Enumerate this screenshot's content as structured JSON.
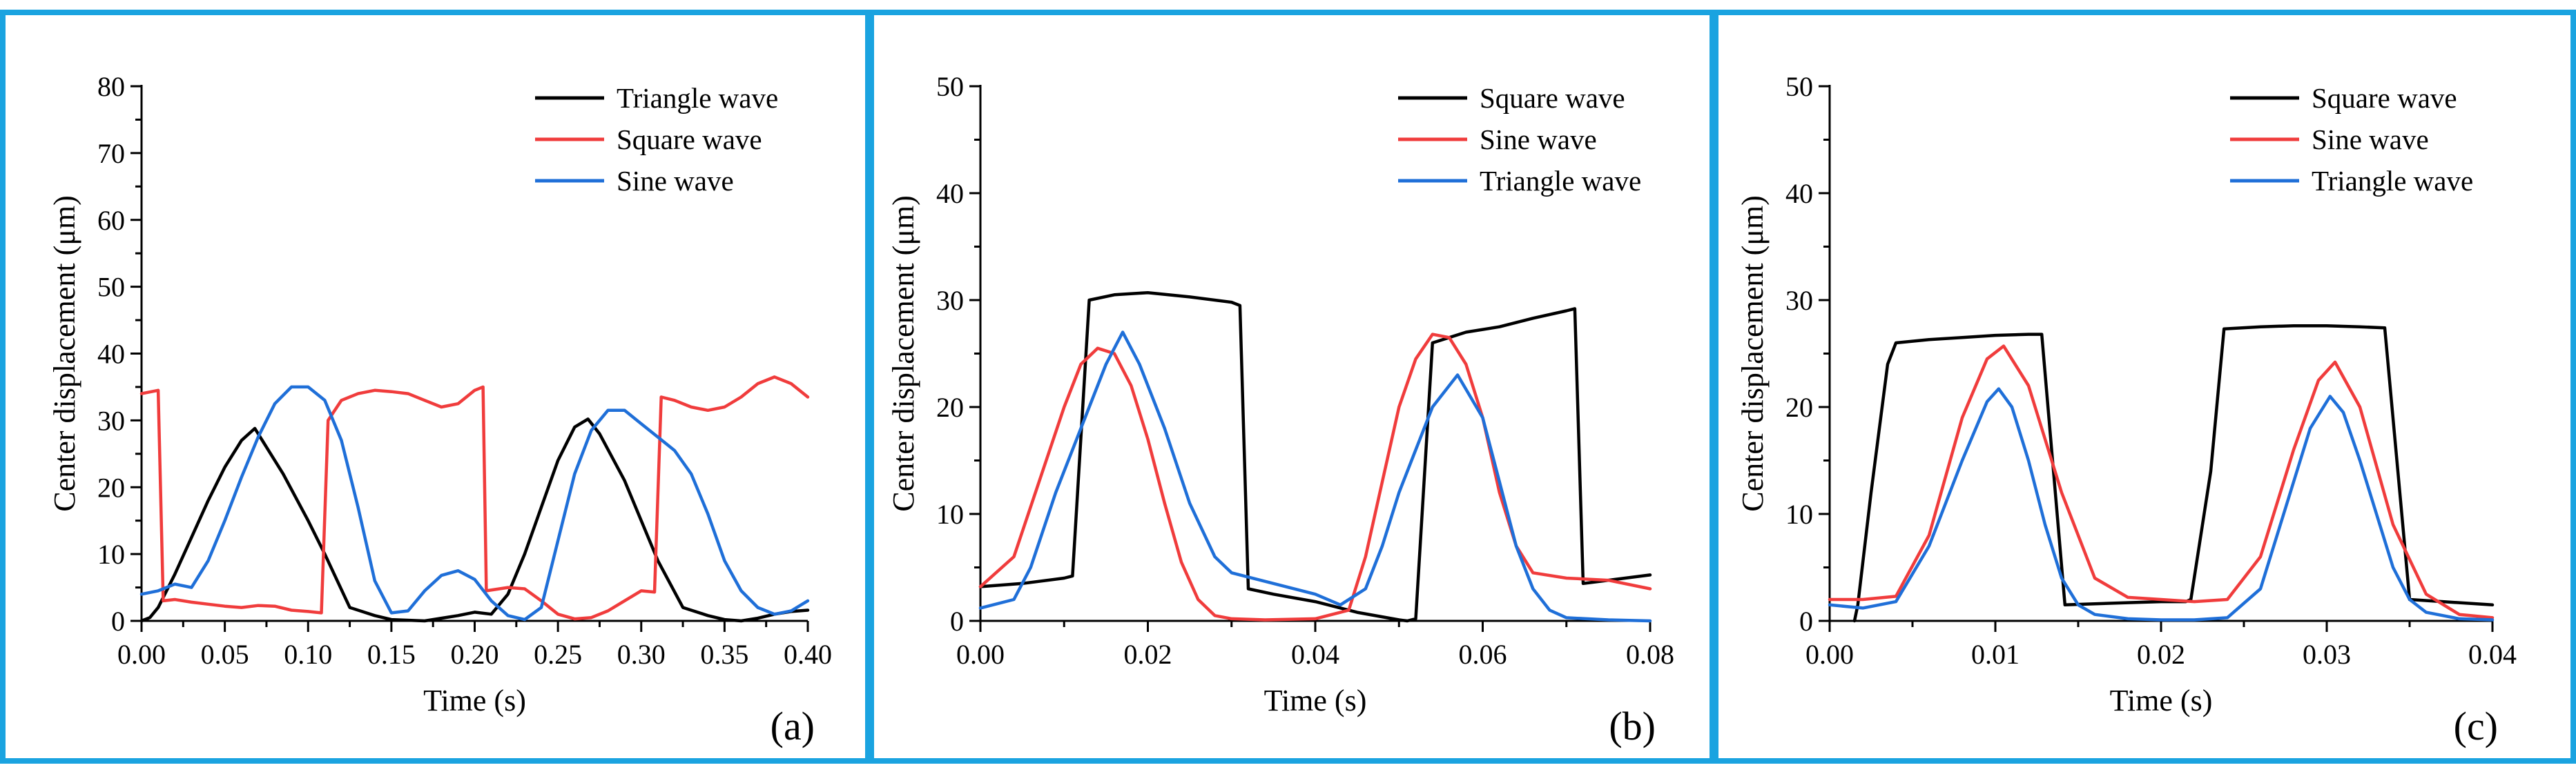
{
  "figure": {
    "border_color": "#1aa3e0",
    "colors": {
      "black": "#000000",
      "red": "#f03c3c",
      "blue": "#1f6fd8"
    }
  },
  "chart_data": [
    {
      "type": "line",
      "panel_label": "(a)",
      "xlabel": "Time (s)",
      "ylabel": "Center displacement (μm)",
      "xlim": [
        0,
        0.4
      ],
      "ylim": [
        0,
        80
      ],
      "xticks": [
        0,
        0.05,
        0.1,
        0.15,
        0.2,
        0.25,
        0.3,
        0.35,
        0.4
      ],
      "xtick_labels": [
        "0.00",
        "0.05",
        "0.10",
        "0.15",
        "0.20",
        "0.25",
        "0.30",
        "0.35",
        "0.40"
      ],
      "yticks": [
        0,
        10,
        20,
        30,
        40,
        50,
        60,
        70,
        80
      ],
      "ytick_labels": [
        "0",
        "10",
        "20",
        "30",
        "40",
        "50",
        "60",
        "70",
        "80"
      ],
      "legend_position": "top-right",
      "series": [
        {
          "name": "Triangle wave",
          "color": "#000000",
          "x": [
            0,
            0.005,
            0.01,
            0.02,
            0.03,
            0.04,
            0.05,
            0.06,
            0.068,
            0.075,
            0.085,
            0.1,
            0.11,
            0.125,
            0.14,
            0.15,
            0.17,
            0.19,
            0.2,
            0.21,
            0.22,
            0.23,
            0.24,
            0.25,
            0.26,
            0.268,
            0.275,
            0.29,
            0.31,
            0.325,
            0.34,
            0.35,
            0.36,
            0.37,
            0.38,
            0.39,
            0.4
          ],
          "y": [
            0,
            0.5,
            2,
            7,
            12.5,
            18,
            23,
            27,
            28.8,
            26,
            22,
            15,
            10,
            2,
            0.8,
            0.2,
            0,
            0.8,
            1.3,
            1,
            4,
            10,
            17,
            24,
            29,
            30.2,
            28,
            21,
            9,
            2,
            0.8,
            0.2,
            0,
            0.4,
            1,
            1.4,
            1.6
          ]
        },
        {
          "name": "Square wave",
          "color": "#f03c3c",
          "x": [
            0,
            0.01,
            0.013,
            0.02,
            0.03,
            0.04,
            0.05,
            0.06,
            0.07,
            0.08,
            0.09,
            0.1,
            0.108,
            0.112,
            0.12,
            0.13,
            0.14,
            0.15,
            0.16,
            0.17,
            0.18,
            0.19,
            0.2,
            0.205,
            0.207,
            0.22,
            0.23,
            0.24,
            0.25,
            0.26,
            0.27,
            0.28,
            0.29,
            0.3,
            0.308,
            0.312,
            0.32,
            0.33,
            0.34,
            0.35,
            0.36,
            0.37,
            0.38,
            0.39,
            0.4
          ],
          "y": [
            34,
            34.5,
            3,
            3.2,
            2.8,
            2.5,
            2.2,
            2,
            2.3,
            2.2,
            1.6,
            1.4,
            1.2,
            30,
            33,
            34,
            34.5,
            34.3,
            34,
            33,
            32,
            32.5,
            34.5,
            35,
            4.5,
            5,
            4.8,
            3,
            1,
            0.3,
            0.5,
            1.5,
            3,
            4.5,
            4.3,
            33.5,
            33,
            32,
            31.5,
            32,
            33.5,
            35.5,
            36.5,
            35.5,
            33.5
          ]
        },
        {
          "name": "Sine wave",
          "color": "#1f6fd8",
          "x": [
            0,
            0.01,
            0.02,
            0.03,
            0.04,
            0.05,
            0.06,
            0.07,
            0.08,
            0.09,
            0.1,
            0.11,
            0.12,
            0.13,
            0.14,
            0.15,
            0.16,
            0.17,
            0.18,
            0.19,
            0.2,
            0.21,
            0.22,
            0.23,
            0.24,
            0.25,
            0.26,
            0.27,
            0.28,
            0.29,
            0.3,
            0.31,
            0.32,
            0.33,
            0.34,
            0.35,
            0.36,
            0.37,
            0.38,
            0.39,
            0.4
          ],
          "y": [
            4,
            4.5,
            5.5,
            5,
            9,
            15,
            21.5,
            27.5,
            32.5,
            35,
            35,
            33,
            27,
            17,
            6,
            1.2,
            1.5,
            4.5,
            6.8,
            7.5,
            6.2,
            3,
            0.8,
            0.2,
            2,
            12,
            22,
            28.5,
            31.5,
            31.5,
            29.5,
            27.5,
            25.5,
            22,
            16,
            9,
            4.5,
            2,
            1,
            1.5,
            3
          ]
        }
      ]
    },
    {
      "type": "line",
      "panel_label": "(b)",
      "xlabel": "Time (s)",
      "ylabel": "Center displacement (μm)",
      "xlim": [
        0,
        0.08
      ],
      "ylim": [
        0,
        50
      ],
      "xticks": [
        0,
        0.02,
        0.04,
        0.06,
        0.08
      ],
      "xtick_labels": [
        "0.00",
        "0.02",
        "0.04",
        "0.06",
        "0.08"
      ],
      "yticks": [
        0,
        10,
        20,
        30,
        40,
        50
      ],
      "ytick_labels": [
        "0",
        "10",
        "20",
        "30",
        "40",
        "50"
      ],
      "legend_position": "top-right",
      "series": [
        {
          "name": "Square wave",
          "color": "#000000",
          "x": [
            0,
            0.005,
            0.01,
            0.011,
            0.013,
            0.016,
            0.02,
            0.025,
            0.03,
            0.031,
            0.032,
            0.035,
            0.04,
            0.045,
            0.05,
            0.051,
            0.052,
            0.054,
            0.058,
            0.062,
            0.066,
            0.07,
            0.071,
            0.072,
            0.075,
            0.08
          ],
          "y": [
            3.2,
            3.5,
            4,
            4.2,
            30,
            30.5,
            30.7,
            30.3,
            29.8,
            29.5,
            3,
            2.5,
            1.8,
            0.8,
            0.1,
            0,
            0.2,
            26,
            27,
            27.5,
            28.3,
            29,
            29.2,
            3.5,
            3.8,
            4.3
          ]
        },
        {
          "name": "Sine wave",
          "color": "#f03c3c",
          "x": [
            0,
            0.004,
            0.007,
            0.01,
            0.012,
            0.014,
            0.016,
            0.018,
            0.02,
            0.022,
            0.024,
            0.026,
            0.028,
            0.03,
            0.034,
            0.04,
            0.044,
            0.046,
            0.048,
            0.05,
            0.052,
            0.054,
            0.056,
            0.058,
            0.06,
            0.062,
            0.064,
            0.066,
            0.07,
            0.075,
            0.08
          ],
          "y": [
            3.2,
            6,
            13,
            20,
            24,
            25.5,
            25,
            22,
            17,
            11,
            5.5,
            2,
            0.5,
            0.2,
            0.1,
            0.2,
            1,
            6,
            13,
            20,
            24.5,
            26.8,
            26.5,
            24,
            19,
            12,
            7,
            4.5,
            4,
            3.8,
            3
          ]
        },
        {
          "name": "Triangle wave",
          "color": "#1f6fd8",
          "x": [
            0,
            0.004,
            0.006,
            0.009,
            0.012,
            0.015,
            0.017,
            0.019,
            0.022,
            0.025,
            0.028,
            0.03,
            0.035,
            0.04,
            0.043,
            0.046,
            0.048,
            0.05,
            0.052,
            0.054,
            0.057,
            0.06,
            0.062,
            0.064,
            0.066,
            0.068,
            0.07,
            0.075,
            0.08
          ],
          "y": [
            1.2,
            2,
            5,
            12,
            18,
            24,
            27,
            24,
            18,
            11,
            6,
            4.5,
            3.5,
            2.5,
            1.5,
            3,
            7,
            12,
            16,
            20,
            23,
            19,
            13,
            7,
            3,
            1,
            0.3,
            0.1,
            0
          ]
        }
      ]
    },
    {
      "type": "line",
      "panel_label": "(c)",
      "xlabel": "Time (s)",
      "ylabel": "Center displacement (μm)",
      "xlim": [
        0,
        0.04
      ],
      "ylim": [
        0,
        50
      ],
      "xticks": [
        0,
        0.01,
        0.02,
        0.03,
        0.04
      ],
      "xtick_labels": [
        "0.00",
        "0.01",
        "0.02",
        "0.03",
        "0.04"
      ],
      "yticks": [
        0,
        10,
        20,
        30,
        40,
        50
      ],
      "ytick_labels": [
        "0",
        "10",
        "20",
        "30",
        "40",
        "50"
      ],
      "legend_position": "top-right",
      "series": [
        {
          "name": "Square wave",
          "color": "#000000",
          "x": [
            0.0015,
            0.0017,
            0.0025,
            0.0035,
            0.004,
            0.006,
            0.008,
            0.01,
            0.012,
            0.0128,
            0.0142,
            0.016,
            0.018,
            0.02,
            0.0215,
            0.0218,
            0.023,
            0.0238,
            0.026,
            0.028,
            0.03,
            0.032,
            0.0335,
            0.035,
            0.037,
            0.04
          ],
          "y": [
            0,
            1.5,
            12,
            24,
            26,
            26.3,
            26.5,
            26.7,
            26.8,
            26.8,
            1.5,
            1.6,
            1.7,
            1.8,
            1.8,
            2,
            14,
            27.3,
            27.5,
            27.6,
            27.6,
            27.5,
            27.4,
            2,
            1.8,
            1.5
          ]
        },
        {
          "name": "Sine wave",
          "color": "#f03c3c",
          "x": [
            0,
            0.002,
            0.004,
            0.006,
            0.008,
            0.0095,
            0.0105,
            0.012,
            0.014,
            0.016,
            0.018,
            0.02,
            0.022,
            0.024,
            0.026,
            0.028,
            0.0295,
            0.0305,
            0.032,
            0.034,
            0.036,
            0.038,
            0.04
          ],
          "y": [
            2,
            2,
            2.3,
            8,
            19,
            24.5,
            25.7,
            22,
            12,
            4,
            2.2,
            2,
            1.8,
            2,
            6,
            16,
            22.5,
            24.2,
            20,
            9,
            2.5,
            0.6,
            0.3
          ]
        },
        {
          "name": "Triangle wave",
          "color": "#1f6fd8",
          "x": [
            0,
            0.002,
            0.004,
            0.006,
            0.008,
            0.0095,
            0.0102,
            0.011,
            0.012,
            0.013,
            0.014,
            0.015,
            0.016,
            0.018,
            0.02,
            0.022,
            0.024,
            0.026,
            0.028,
            0.029,
            0.0302,
            0.031,
            0.032,
            0.033,
            0.034,
            0.035,
            0.036,
            0.038,
            0.04
          ],
          "y": [
            1.5,
            1.2,
            1.8,
            7,
            15,
            20.5,
            21.7,
            20,
            15,
            9,
            4,
            1.5,
            0.6,
            0.2,
            0.1,
            0.1,
            0.3,
            3,
            13,
            18,
            21,
            19.5,
            15,
            10,
            5,
            2,
            0.8,
            0.2,
            0.1
          ]
        }
      ]
    }
  ]
}
